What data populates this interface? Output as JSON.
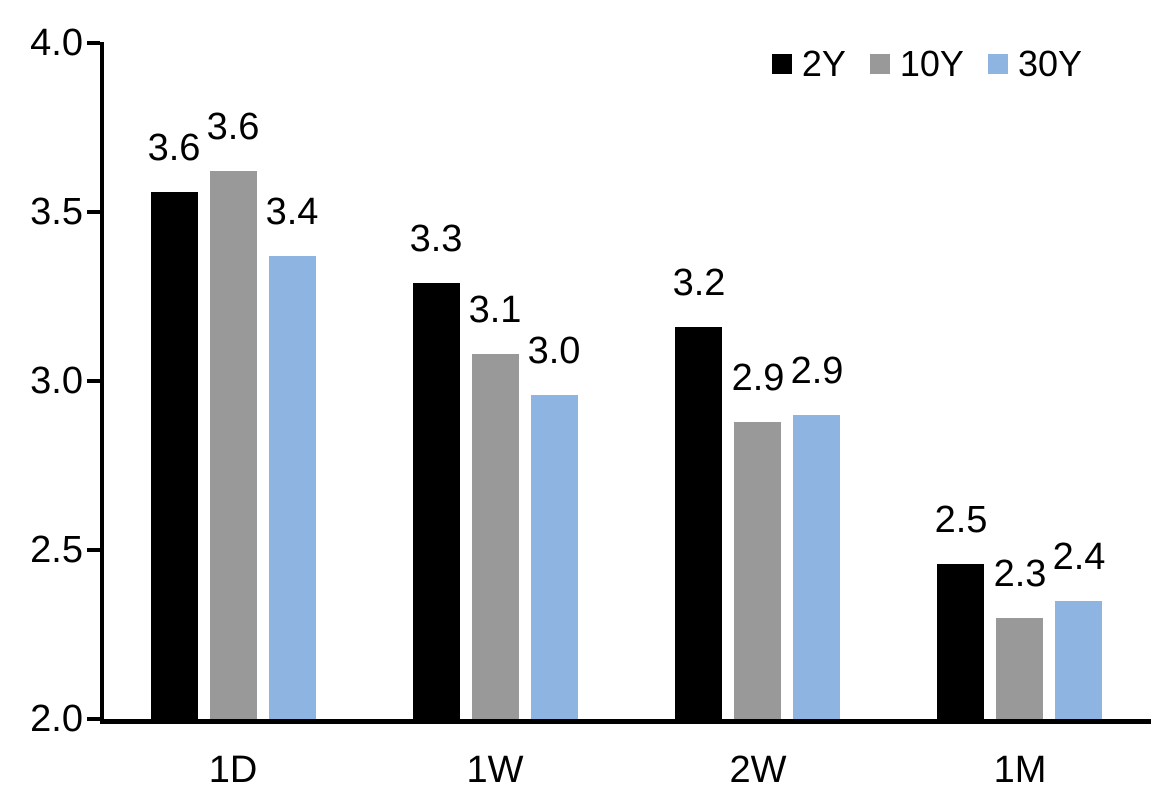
{
  "chart_data": {
    "type": "bar",
    "title": "",
    "categories": [
      "1D",
      "1W",
      "2W",
      "1M"
    ],
    "series": [
      {
        "name": "2Y",
        "color": "#000000",
        "values": [
          3.56,
          3.29,
          3.16,
          2.46
        ],
        "labels": [
          "3.6",
          "3.3",
          "3.2",
          "2.5"
        ]
      },
      {
        "name": "10Y",
        "color": "#999999",
        "values": [
          3.62,
          3.08,
          2.88,
          2.3
        ],
        "labels": [
          "3.6",
          "3.1",
          "2.9",
          "2.3"
        ]
      },
      {
        "name": "30Y",
        "color": "#8EB4E2",
        "values": [
          3.37,
          2.96,
          2.9,
          2.35
        ],
        "labels": [
          "3.4",
          "3.0",
          "2.9",
          "2.4"
        ]
      }
    ],
    "ylim": [
      2.0,
      4.0
    ],
    "ytick_step": 0.5,
    "yticks": [
      "4.0",
      "3.5",
      "3.0",
      "2.5",
      "2.0"
    ],
    "xlabel": "",
    "ylabel": "",
    "legend": [
      "2Y",
      "10Y",
      "30Y"
    ],
    "legend_position": "top-right",
    "grid": false,
    "data_labels": true,
    "text_color": "#000000",
    "background_color": "#FFFFFF"
  }
}
